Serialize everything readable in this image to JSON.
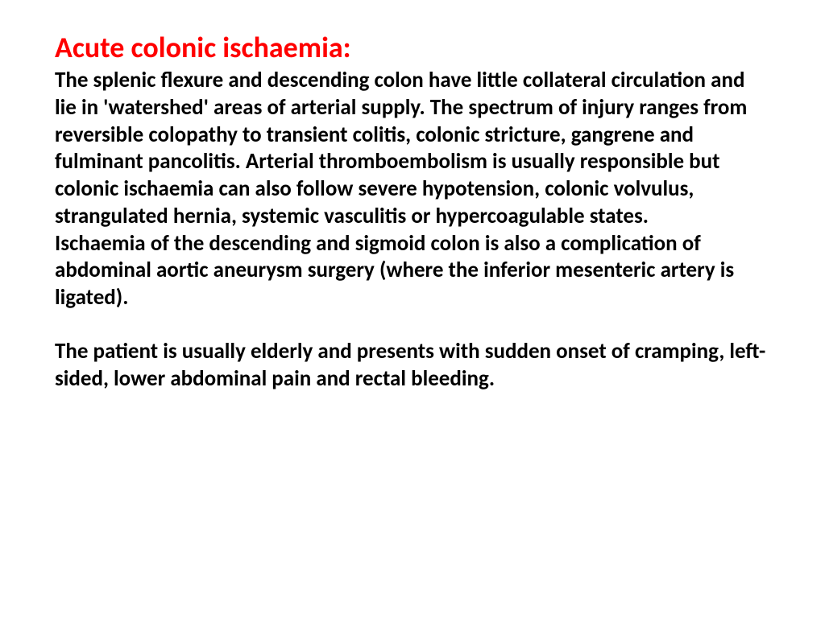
{
  "slide": {
    "title": "Acute colonic ischaemia:",
    "paragraph1": "The splenic flexure and descending colon have little collateral circulation and lie in 'watershed' areas of arterial supply. The spectrum of injury ranges from reversible colopathy to transient colitis, colonic stricture, gangrene and fulminant pancolitis. Arterial thromboembolism is usually responsible but colonic ischaemia can also follow severe hypotension, colonic volvulus, strangulated hernia, systemic vasculitis or hypercoagulable states.",
    "paragraph2": " Ischaemia of the descending and sigmoid colon is also a complication of abdominal aortic aneurysm surgery (where the inferior mesenteric artery is ligated).",
    "paragraph3": "The patient is usually elderly and presents with sudden onset of cramping, left-sided, lower abdominal pain and rectal bleeding."
  },
  "colors": {
    "title_color": "#ff0000",
    "body_color": "#000000",
    "background": "#ffffff"
  },
  "typography": {
    "title_fontsize": 36,
    "body_fontsize": 27,
    "font_weight": "bold",
    "font_family": "Calibri"
  }
}
